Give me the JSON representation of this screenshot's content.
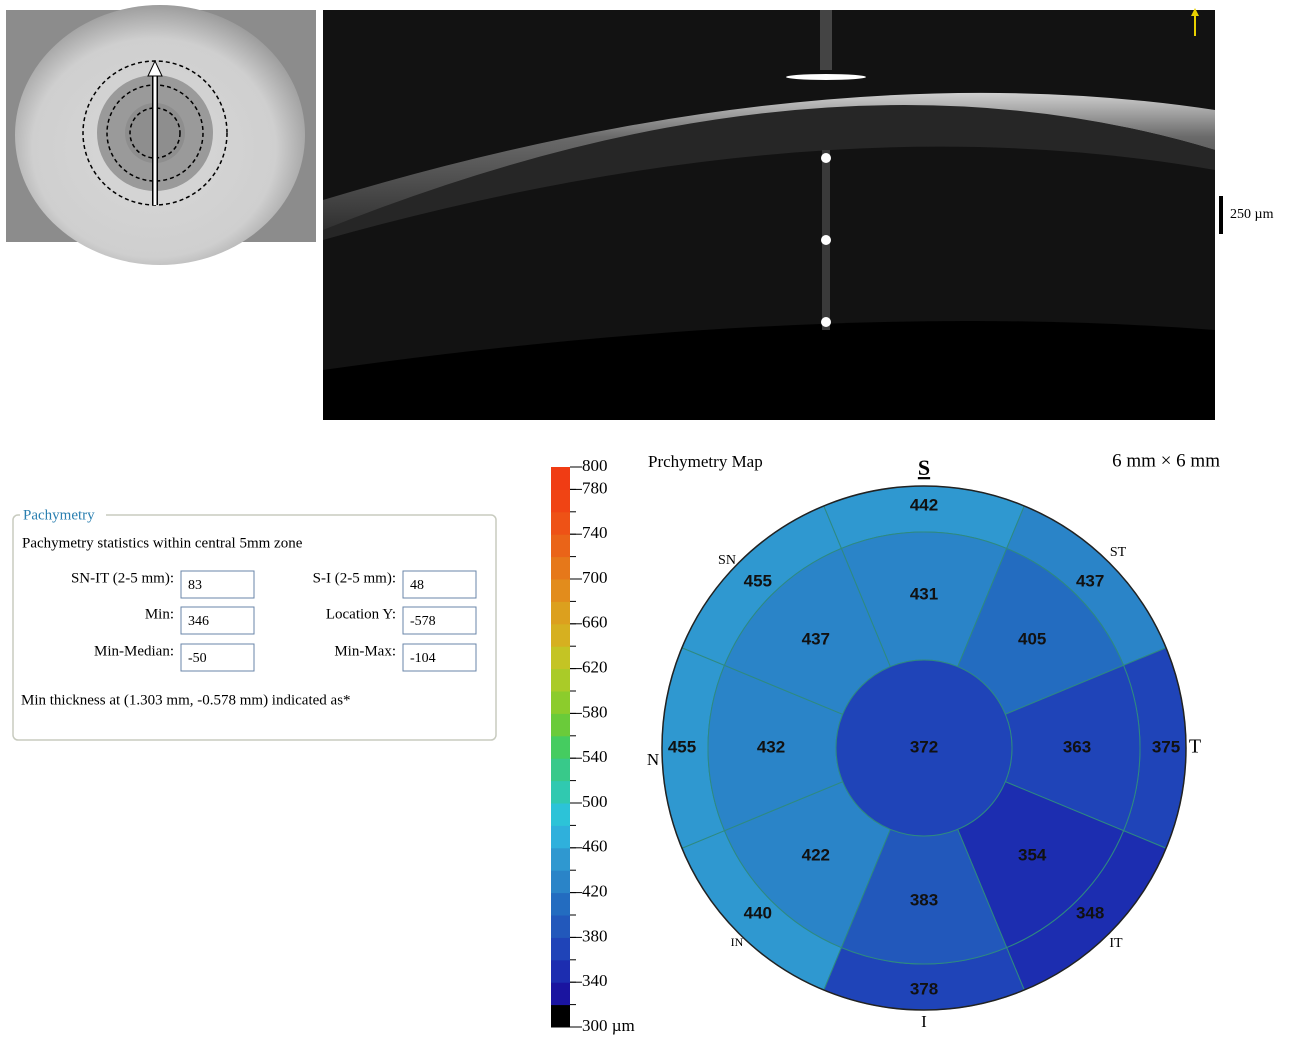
{
  "oct_scan": {
    "scale_label": "250 µm"
  },
  "pachymetry": {
    "title": "Pachymetry",
    "subtitle": "Pachymetry statistics within central 5mm zone",
    "fields": [
      [
        {
          "label": "SN-IT (2-5 mm):",
          "value": "83"
        },
        {
          "label": "S-I (2-5 mm):",
          "value": "48"
        }
      ],
      [
        {
          "label": "Min:",
          "value": "346"
        },
        {
          "label": "Location Y:",
          "value": "-578"
        }
      ],
      [
        {
          "label": "Min-Median:",
          "value": "-50"
        },
        {
          "label": "Min-Max:",
          "value": "-104"
        }
      ]
    ],
    "note": "Min thickness at (1.303 mm, -0.578 mm) indicated as*"
  },
  "colorbar": {
    "range": [
      300,
      800
    ],
    "ticks": [
      800,
      780,
      740,
      700,
      660,
      620,
      580,
      540,
      500,
      460,
      420,
      380,
      340,
      {
        "value": 300,
        "label": "300 µm"
      }
    ],
    "colors": [
      "#000000",
      "#1a14a0",
      "#1c2db0",
      "#1f44b8",
      "#2258bb",
      "#236cc0",
      "#2a84c8",
      "#2f98d0",
      "#2fb0dc",
      "#2cc3d8",
      "#30c9b0",
      "#38c98a",
      "#45cc60",
      "#6acb3a",
      "#8ccc2c",
      "#aacb28",
      "#c4c424",
      "#d6b020",
      "#dca01e",
      "#e28c1c",
      "#e6781a",
      "#ea6418",
      "#ee5216",
      "#f04414",
      "#f03c14"
    ]
  },
  "map": {
    "title": "Prchymetry Map",
    "size": "6 mm × 6 mm",
    "directions": [
      "S",
      "ST",
      "T",
      "IT",
      "I",
      "IN",
      "N",
      "SN"
    ],
    "center": 372,
    "inner": [
      431,
      405,
      363,
      354,
      383,
      422,
      432,
      437
    ],
    "outer": [
      442,
      437,
      375,
      348,
      378,
      440,
      455,
      455
    ]
  }
}
